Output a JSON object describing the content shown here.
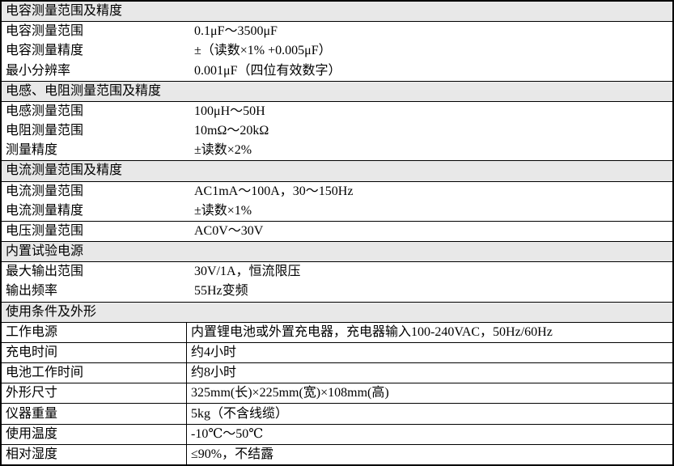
{
  "colors": {
    "header_bg": "#e8e8e8",
    "border": "#000000",
    "text": "#000000",
    "background": "#ffffff"
  },
  "sections": [
    {
      "header": "电容测量范围及精度",
      "rows": [
        {
          "label": "电容测量范围",
          "value": "0.1μF～3500μF"
        },
        {
          "label": "电容测量精度",
          "value": "±（读数×1% +0.005μF）"
        },
        {
          "label": "最小分辨率",
          "value": "0.001μF（四位有效数字）"
        }
      ]
    },
    {
      "header": "电感、电阻测量范围及精度",
      "rows": [
        {
          "label": "电感测量范围",
          "value": "100μH～50H"
        },
        {
          "label": "电阻测量范围",
          "value": "10mΩ～20kΩ"
        },
        {
          "label": "测量精度",
          "value": "±读数×2%"
        }
      ]
    },
    {
      "header": "电流测量范围及精度",
      "rows": [
        {
          "label": "电流测量范围",
          "value": "AC1mA～100A，30～150Hz"
        },
        {
          "label": "电流测量精度",
          "value": "±读数×1%"
        },
        {
          "label": "电压测量范围",
          "value": "AC0V～30V"
        }
      ]
    },
    {
      "header": "内置试验电源",
      "rows": [
        {
          "label": "最大输出范围",
          "value": "30V/1A，恒流限压"
        },
        {
          "label": "输出频率",
          "value": "55Hz变频"
        }
      ]
    },
    {
      "header": "使用条件及外形",
      "rows": [
        {
          "label": "工作电源",
          "value": "内置锂电池或外置充电器，充电器输入100-240VAC，50Hz/60Hz"
        },
        {
          "label": "充电时间",
          "value": "约4小时"
        },
        {
          "label": "电池工作时间",
          "value": "约8小时"
        },
        {
          "label": "外形尺寸",
          "value": "325mm(长)×225mm(宽)×108mm(高)"
        },
        {
          "label": "仪器重量",
          "value": "5kg（不含线缆）"
        },
        {
          "label": "使用温度",
          "value": "-10℃～50℃"
        },
        {
          "label": "相对湿度",
          "value": "≤90%，不结露"
        }
      ]
    }
  ]
}
